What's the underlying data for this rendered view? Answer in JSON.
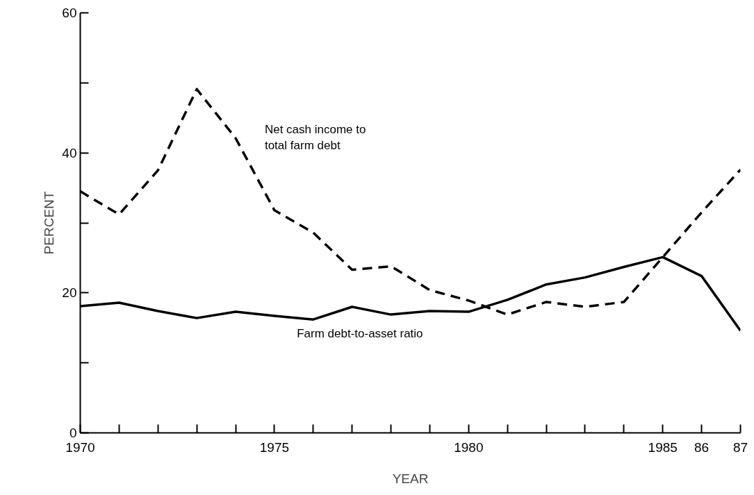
{
  "chart_data": {
    "type": "line",
    "xlabel": "YEAR",
    "ylabel": "PERCENT",
    "x": [
      1970,
      1971,
      1972,
      1973,
      1974,
      1975,
      1976,
      1977,
      1978,
      1979,
      1980,
      1981,
      1982,
      1983,
      1984,
      1985,
      1986,
      1987
    ],
    "series": [
      {
        "name": "Net cash income to total farm debt",
        "color": "#000000",
        "line_style": "dashed",
        "values": [
          34.5,
          31.2,
          37.5,
          49.1,
          42.1,
          31.8,
          28.6,
          23.3,
          23.8,
          20.4,
          18.9,
          16.9,
          18.7,
          18.0,
          18.7,
          25.1,
          31.5,
          37.6
        ]
      },
      {
        "name": "Farm debt-to-asset ratio",
        "color": "#000000",
        "line_style": "solid",
        "values": [
          18.1,
          18.6,
          17.4,
          16.4,
          17.3,
          16.7,
          16.2,
          18.0,
          16.9,
          17.4,
          17.3,
          19.0,
          21.2,
          22.2,
          23.7,
          25.1,
          22.4,
          14.6
        ]
      }
    ],
    "xlim": [
      1970,
      1987
    ],
    "ylim": [
      0,
      60
    ],
    "xticks": [
      1970,
      {
        "value": 1971,
        "label": null
      },
      {
        "value": 1972,
        "label": null
      },
      {
        "value": 1973,
        "label": null
      },
      {
        "value": 1974,
        "label": null
      },
      1975,
      {
        "value": 1976,
        "label": null
      },
      {
        "value": 1977,
        "label": null
      },
      {
        "value": 1978,
        "label": null
      },
      {
        "value": 1979,
        "label": null
      },
      1980,
      {
        "value": 1981,
        "label": null
      },
      {
        "value": 1982,
        "label": null
      },
      {
        "value": 1983,
        "label": null
      },
      {
        "value": 1984,
        "label": null
      },
      1985,
      {
        "value": 1986,
        "label": "86"
      },
      {
        "value": 1987,
        "label": "87"
      }
    ],
    "yticks": [
      0,
      {
        "value": 10,
        "label": null
      },
      20,
      {
        "value": 30,
        "label": null
      },
      40,
      {
        "value": 50,
        "label": null
      },
      60
    ],
    "grid": false,
    "legend": false,
    "marker": "none"
  }
}
